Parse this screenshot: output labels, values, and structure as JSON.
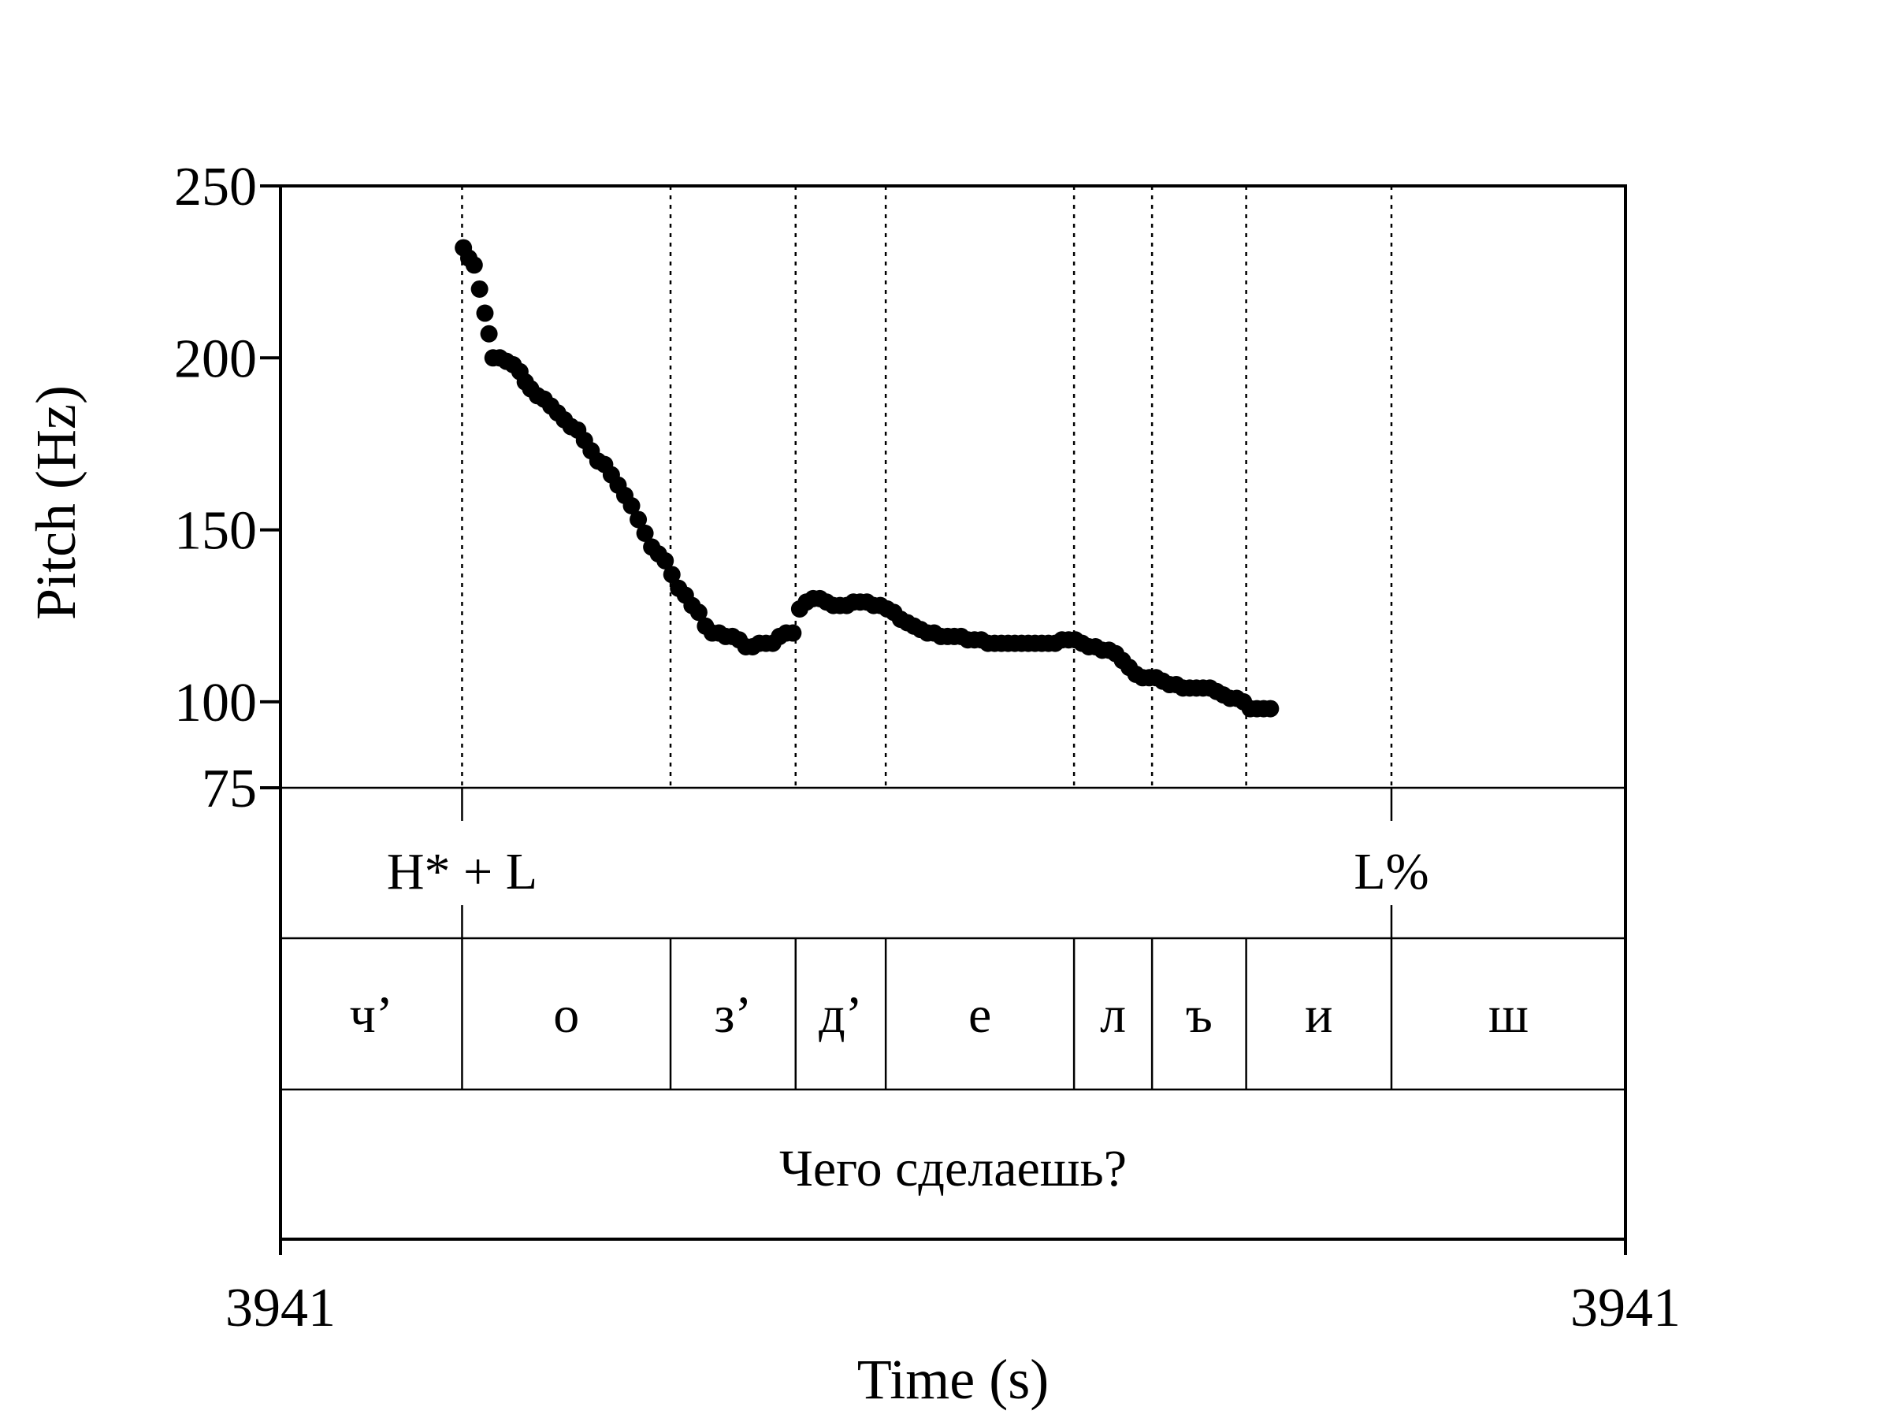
{
  "chart_data": {
    "type": "scatter",
    "title": "",
    "xlabel": "Time (s)",
    "ylabel": "Pitch (Hz)",
    "x_tick_labels": [
      "3941",
      "3941"
    ],
    "y_ticks": [
      250,
      200,
      150,
      100,
      75
    ],
    "ylim": [
      75,
      250
    ],
    "grid": false,
    "legend": "none",
    "x_unit_note": "time expressed as fraction of the displayed interval",
    "boundaries": [
      0.135,
      0.29,
      0.383,
      0.45,
      0.59,
      0.648,
      0.718,
      0.826
    ],
    "pitch_points": [
      [
        0.136,
        232
      ],
      [
        0.14,
        229
      ],
      [
        0.144,
        227
      ],
      [
        0.148,
        220
      ],
      [
        0.152,
        213
      ],
      [
        0.155,
        207
      ],
      [
        0.158,
        200
      ],
      [
        0.163,
        200
      ],
      [
        0.168,
        199
      ],
      [
        0.173,
        198
      ],
      [
        0.178,
        196
      ],
      [
        0.182,
        193
      ],
      [
        0.186,
        191
      ],
      [
        0.191,
        189
      ],
      [
        0.196,
        188
      ],
      [
        0.201,
        186
      ],
      [
        0.206,
        184
      ],
      [
        0.211,
        182
      ],
      [
        0.216,
        180
      ],
      [
        0.221,
        179
      ],
      [
        0.226,
        176
      ],
      [
        0.231,
        173
      ],
      [
        0.236,
        170
      ],
      [
        0.241,
        169
      ],
      [
        0.246,
        166
      ],
      [
        0.251,
        163
      ],
      [
        0.256,
        160
      ],
      [
        0.261,
        157
      ],
      [
        0.266,
        153
      ],
      [
        0.271,
        149
      ],
      [
        0.276,
        145
      ],
      [
        0.281,
        143
      ],
      [
        0.286,
        141
      ],
      [
        0.291,
        137
      ],
      [
        0.296,
        133
      ],
      [
        0.301,
        131
      ],
      [
        0.306,
        128
      ],
      [
        0.311,
        126
      ],
      [
        0.316,
        122
      ],
      [
        0.321,
        120
      ],
      [
        0.326,
        120
      ],
      [
        0.331,
        119
      ],
      [
        0.336,
        119
      ],
      [
        0.341,
        118
      ],
      [
        0.346,
        116
      ],
      [
        0.351,
        116
      ],
      [
        0.356,
        117
      ],
      [
        0.361,
        117
      ],
      [
        0.366,
        117
      ],
      [
        0.371,
        119
      ],
      [
        0.376,
        120
      ],
      [
        0.381,
        120
      ],
      [
        0.386,
        127
      ],
      [
        0.391,
        129
      ],
      [
        0.396,
        130
      ],
      [
        0.401,
        130
      ],
      [
        0.406,
        129
      ],
      [
        0.411,
        128
      ],
      [
        0.416,
        128
      ],
      [
        0.421,
        128
      ],
      [
        0.426,
        129
      ],
      [
        0.431,
        129
      ],
      [
        0.436,
        129
      ],
      [
        0.441,
        128
      ],
      [
        0.446,
        128
      ],
      [
        0.451,
        127
      ],
      [
        0.456,
        126
      ],
      [
        0.461,
        124
      ],
      [
        0.466,
        123
      ],
      [
        0.471,
        122
      ],
      [
        0.476,
        121
      ],
      [
        0.481,
        120
      ],
      [
        0.486,
        120
      ],
      [
        0.491,
        119
      ],
      [
        0.496,
        119
      ],
      [
        0.501,
        119
      ],
      [
        0.506,
        119
      ],
      [
        0.511,
        118
      ],
      [
        0.516,
        118
      ],
      [
        0.521,
        118
      ],
      [
        0.526,
        117
      ],
      [
        0.531,
        117
      ],
      [
        0.536,
        117
      ],
      [
        0.541,
        117
      ],
      [
        0.546,
        117
      ],
      [
        0.551,
        117
      ],
      [
        0.556,
        117
      ],
      [
        0.561,
        117
      ],
      [
        0.566,
        117
      ],
      [
        0.571,
        117
      ],
      [
        0.576,
        117
      ],
      [
        0.581,
        118
      ],
      [
        0.586,
        118
      ],
      [
        0.591,
        118
      ],
      [
        0.596,
        117
      ],
      [
        0.601,
        116
      ],
      [
        0.606,
        116
      ],
      [
        0.611,
        115
      ],
      [
        0.616,
        115
      ],
      [
        0.621,
        114
      ],
      [
        0.626,
        112
      ],
      [
        0.631,
        110
      ],
      [
        0.636,
        108
      ],
      [
        0.641,
        107
      ],
      [
        0.646,
        107
      ],
      [
        0.651,
        107
      ],
      [
        0.656,
        106
      ],
      [
        0.661,
        105
      ],
      [
        0.666,
        105
      ],
      [
        0.671,
        104
      ],
      [
        0.676,
        104
      ],
      [
        0.681,
        104
      ],
      [
        0.686,
        104
      ],
      [
        0.691,
        104
      ],
      [
        0.696,
        103
      ],
      [
        0.701,
        102
      ],
      [
        0.706,
        101
      ],
      [
        0.711,
        101
      ],
      [
        0.716,
        100
      ],
      [
        0.721,
        98
      ],
      [
        0.726,
        98
      ],
      [
        0.731,
        98
      ],
      [
        0.736,
        98
      ]
    ],
    "tiers": {
      "tones": [
        {
          "label": "H* + L",
          "t": 0.135
        },
        {
          "label": "L%",
          "t": 0.826
        }
      ],
      "segments": [
        {
          "label": "ч’",
          "start": 0.0,
          "end": 0.135
        },
        {
          "label": "о",
          "start": 0.135,
          "end": 0.29
        },
        {
          "label": "з’",
          "start": 0.29,
          "end": 0.383
        },
        {
          "label": "д’",
          "start": 0.383,
          "end": 0.45
        },
        {
          "label": "е",
          "start": 0.45,
          "end": 0.59
        },
        {
          "label": "л",
          "start": 0.59,
          "end": 0.648
        },
        {
          "label": "ъ",
          "start": 0.648,
          "end": 0.718
        },
        {
          "label": "и",
          "start": 0.718,
          "end": 0.826
        },
        {
          "label": "ш",
          "start": 0.826,
          "end": 1.0
        }
      ],
      "sentence": "Чего сделаешь?"
    }
  }
}
